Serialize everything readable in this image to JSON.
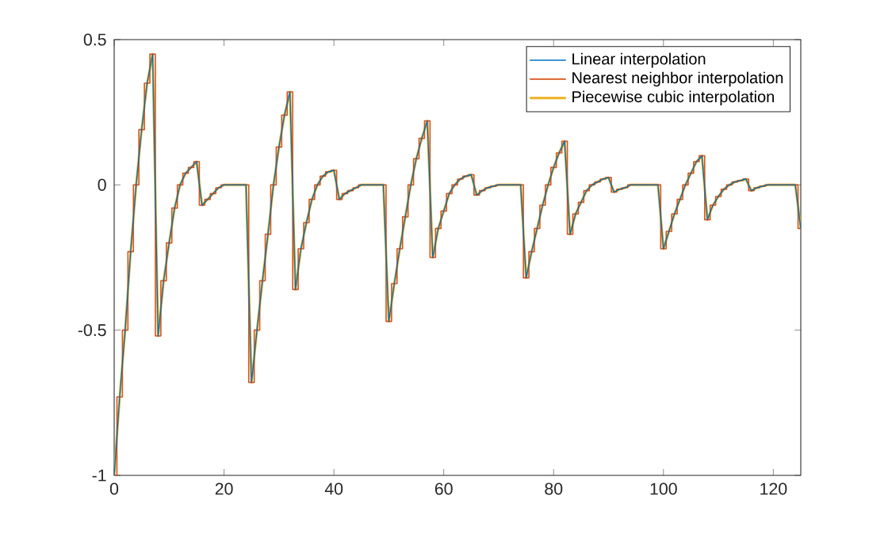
{
  "chart_data": {
    "type": "line",
    "x": [
      0,
      1,
      2,
      3,
      4,
      5,
      6,
      7,
      8,
      9,
      10,
      11,
      12,
      13,
      14,
      15,
      16,
      17,
      18,
      19,
      20,
      21,
      22,
      23,
      24,
      25,
      26,
      27,
      28,
      29,
      30,
      31,
      32,
      33,
      34,
      35,
      36,
      37,
      38,
      39,
      40,
      41,
      42,
      43,
      44,
      45,
      46,
      47,
      48,
      49,
      50,
      51,
      52,
      53,
      54,
      55,
      56,
      57,
      58,
      59,
      60,
      61,
      62,
      63,
      64,
      65,
      66,
      67,
      68,
      69,
      70,
      71,
      72,
      73,
      74,
      75,
      76,
      77,
      78,
      79,
      80,
      81,
      82,
      83,
      84,
      85,
      86,
      87,
      88,
      89,
      90,
      91,
      92,
      93,
      94,
      95,
      96,
      97,
      98,
      99,
      100,
      101,
      102,
      103,
      104,
      105,
      106,
      107,
      108,
      109,
      110,
      111,
      112,
      113,
      114,
      115,
      116,
      117,
      118,
      119,
      120,
      121,
      122,
      123,
      124,
      125
    ],
    "series": [
      {
        "name": "Linear interpolation",
        "color": "#0072bd",
        "type": "line",
        "values": [
          -1,
          -0.73,
          -0.5,
          -0.23,
          0,
          0.19,
          0.35,
          0.45,
          -0.52,
          -0.33,
          -0.2,
          -0.08,
          0,
          0.04,
          0.06,
          0.08,
          -0.07,
          -0.05,
          -0.03,
          -0.01,
          0,
          0,
          0,
          0,
          0,
          -0.68,
          -0.5,
          -0.33,
          -0.17,
          0,
          0.13,
          0.24,
          0.32,
          -0.36,
          -0.22,
          -0.13,
          -0.05,
          0,
          0.03,
          0.045,
          0.05,
          -0.05,
          -0.03,
          -0.02,
          -0.01,
          0,
          0,
          0,
          0,
          0,
          -0.47,
          -0.34,
          -0.22,
          -0.11,
          0,
          0.09,
          0.16,
          0.22,
          -0.25,
          -0.15,
          -0.09,
          -0.03,
          0,
          0.02,
          0.03,
          0.035,
          -0.035,
          -0.02,
          -0.01,
          -0.005,
          0,
          0,
          0,
          0,
          0,
          -0.32,
          -0.23,
          -0.15,
          -0.07,
          0,
          0.06,
          0.11,
          0.15,
          -0.17,
          -0.1,
          -0.06,
          -0.02,
          0,
          0.01,
          0.02,
          0.025,
          -0.025,
          -0.015,
          -0.01,
          0,
          0,
          0,
          0,
          0,
          0,
          -0.22,
          -0.16,
          -0.1,
          -0.05,
          0,
          0.04,
          0.08,
          0.1,
          -0.12,
          -0.07,
          -0.04,
          -0.015,
          0,
          0.01,
          0.015,
          0.02,
          -0.02,
          -0.01,
          -0.005,
          0,
          0,
          0,
          0,
          0,
          0,
          -0.15
        ]
      },
      {
        "name": "Nearest neighbor interpolation",
        "color": "#d95319",
        "type": "step",
        "values": [
          -1,
          -0.73,
          -0.5,
          -0.23,
          0,
          0.19,
          0.35,
          0.45,
          -0.52,
          -0.33,
          -0.2,
          -0.08,
          0,
          0.04,
          0.06,
          0.08,
          -0.07,
          -0.05,
          -0.03,
          -0.01,
          0,
          0,
          0,
          0,
          0,
          -0.68,
          -0.5,
          -0.33,
          -0.17,
          0,
          0.13,
          0.24,
          0.32,
          -0.36,
          -0.22,
          -0.13,
          -0.05,
          0,
          0.03,
          0.045,
          0.05,
          -0.05,
          -0.03,
          -0.02,
          -0.01,
          0,
          0,
          0,
          0,
          0,
          -0.47,
          -0.34,
          -0.22,
          -0.11,
          0,
          0.09,
          0.16,
          0.22,
          -0.25,
          -0.15,
          -0.09,
          -0.03,
          0,
          0.02,
          0.03,
          0.035,
          -0.035,
          -0.02,
          -0.01,
          -0.005,
          0,
          0,
          0,
          0,
          0,
          -0.32,
          -0.23,
          -0.15,
          -0.07,
          0,
          0.06,
          0.11,
          0.15,
          -0.17,
          -0.1,
          -0.06,
          -0.02,
          0,
          0.01,
          0.02,
          0.025,
          -0.025,
          -0.015,
          -0.01,
          0,
          0,
          0,
          0,
          0,
          0,
          -0.22,
          -0.16,
          -0.1,
          -0.05,
          0,
          0.04,
          0.08,
          0.1,
          -0.12,
          -0.07,
          -0.04,
          -0.015,
          0,
          0.01,
          0.015,
          0.02,
          -0.02,
          -0.01,
          -0.005,
          0,
          0,
          0,
          0,
          0,
          0,
          -0.15
        ]
      },
      {
        "name": "Piecewise cubic interpolation",
        "color": "#edb120",
        "type": "line",
        "values": [
          -1,
          -0.73,
          -0.5,
          -0.23,
          0,
          0.19,
          0.35,
          0.45,
          -0.52,
          -0.33,
          -0.2,
          -0.08,
          0,
          0.04,
          0.06,
          0.08,
          -0.07,
          -0.05,
          -0.03,
          -0.01,
          0,
          0,
          0,
          0,
          0,
          -0.68,
          -0.5,
          -0.33,
          -0.17,
          0,
          0.13,
          0.24,
          0.32,
          -0.36,
          -0.22,
          -0.13,
          -0.05,
          0,
          0.03,
          0.045,
          0.05,
          -0.05,
          -0.03,
          -0.02,
          -0.01,
          0,
          0,
          0,
          0,
          0,
          -0.47,
          -0.34,
          -0.22,
          -0.11,
          0,
          0.09,
          0.16,
          0.22,
          -0.25,
          -0.15,
          -0.09,
          -0.03,
          0,
          0.02,
          0.03,
          0.035,
          -0.035,
          -0.02,
          -0.01,
          -0.005,
          0,
          0,
          0,
          0,
          0,
          -0.32,
          -0.23,
          -0.15,
          -0.07,
          0,
          0.06,
          0.11,
          0.15,
          -0.17,
          -0.1,
          -0.06,
          -0.02,
          0,
          0.01,
          0.02,
          0.025,
          -0.025,
          -0.015,
          -0.01,
          0,
          0,
          0,
          0,
          0,
          0,
          -0.22,
          -0.16,
          -0.1,
          -0.05,
          0,
          0.04,
          0.08,
          0.1,
          -0.12,
          -0.07,
          -0.04,
          -0.015,
          0,
          0.01,
          0.015,
          0.02,
          -0.02,
          -0.01,
          -0.005,
          0,
          0,
          0,
          0,
          0,
          0,
          -0.15
        ]
      }
    ],
    "xlim": [
      0,
      125
    ],
    "xticks": [
      0,
      20,
      40,
      60,
      80,
      100,
      120
    ],
    "ylim": [
      -1,
      0.5
    ],
    "yticks": [
      -1,
      -0.5,
      0,
      0.5
    ],
    "legend": "top right",
    "grid": false
  }
}
